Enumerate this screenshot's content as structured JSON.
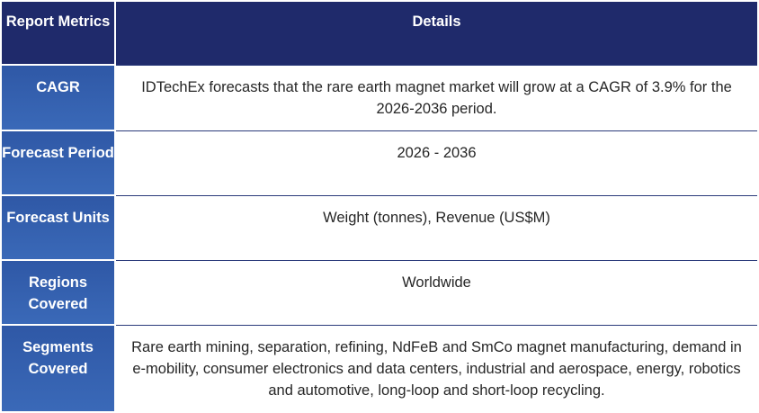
{
  "table": {
    "header": {
      "metric_label": "Report Metrics",
      "details_label": "Details"
    },
    "rows": [
      {
        "metric": "CAGR",
        "details": "IDTechEx forecasts that the rare earth magnet market will grow at a CAGR of 3.9% for the 2026-2036 period."
      },
      {
        "metric": "Forecast Period",
        "details": "2026 - 2036"
      },
      {
        "metric": "Forecast Units",
        "details": "Weight (tonnes), Revenue (US$M)"
      },
      {
        "metric": "Regions Covered",
        "details": "Worldwide"
      },
      {
        "metric": "Segments Covered",
        "details": "Rare earth mining, separation, refining, NdFeB and SmCo magnet manufacturing, demand in e-mobility, consumer electronics and data centers, industrial and aerospace, energy, robotics and automotive, long-loop and short-loop recycling."
      }
    ]
  },
  "colors": {
    "header_bg": "#1f2a6b",
    "key_bg": "#3a69b8",
    "text_dark": "#262626",
    "text_light": "#ffffff"
  }
}
